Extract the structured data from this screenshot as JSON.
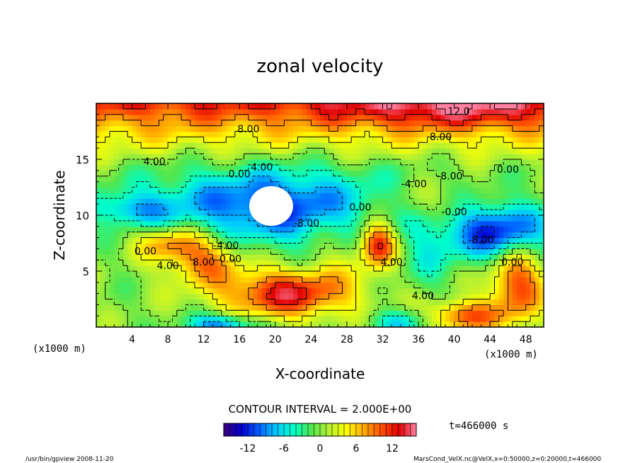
{
  "chart_data": {
    "type": "heatmap",
    "title": "zonal velocity",
    "xlabel": "X-coordinate",
    "ylabel": "Z-coordinate",
    "x_unit_label": "(x1000 m)",
    "z_unit_label": "(x1000 m)",
    "xlim": [
      0,
      50
    ],
    "ylim": [
      0,
      20
    ],
    "x_ticks": [
      4,
      8,
      12,
      16,
      20,
      24,
      28,
      32,
      36,
      40,
      44,
      48
    ],
    "y_ticks": [
      5,
      10,
      15
    ],
    "contour_interval_text": "CONTOUR INTERVAL = 2.000E+00",
    "time_text": "t=466000 s",
    "colorbar": {
      "range": [
        -16,
        16
      ],
      "ticks": [
        -12,
        -6,
        0,
        6,
        12
      ]
    },
    "contour_labels": [
      {
        "text": "12.0",
        "x": 40.5,
        "z": 19.0
      },
      {
        "text": "8.00",
        "x": 17.0,
        "z": 17.4
      },
      {
        "text": "8.00",
        "x": 38.5,
        "z": 16.7
      },
      {
        "text": "4.00",
        "x": 6.5,
        "z": 14.5
      },
      {
        "text": "4.00",
        "x": 18.5,
        "z": 14.0
      },
      {
        "text": "0.00",
        "x": 16.0,
        "z": 13.4
      },
      {
        "text": "-8.00",
        "x": 23.5,
        "z": 9.0
      },
      {
        "text": "-4.00",
        "x": 14.5,
        "z": 7.0
      },
      {
        "text": "0.00",
        "x": 29.5,
        "z": 10.4
      },
      {
        "text": "-4.00",
        "x": 35.5,
        "z": 12.5
      },
      {
        "text": "-8.00",
        "x": 39.5,
        "z": 13.2
      },
      {
        "text": "0.00",
        "x": 46.0,
        "z": 13.8
      },
      {
        "text": "-8.00",
        "x": 43.0,
        "z": 7.5
      },
      {
        "text": "-0.00",
        "x": 40.0,
        "z": 10.0
      },
      {
        "text": "0.00",
        "x": 46.5,
        "z": 5.5
      },
      {
        "text": "0.00",
        "x": 5.5,
        "z": 6.5
      },
      {
        "text": "4.00",
        "x": 8.0,
        "z": 5.2
      },
      {
        "text": "8.00",
        "x": 12.0,
        "z": 5.5
      },
      {
        "text": "0.00",
        "x": 15.0,
        "z": 5.8
      },
      {
        "text": "4.00",
        "x": 33.0,
        "z": 5.5
      },
      {
        "text": "4.00",
        "x": 36.5,
        "z": 2.5
      }
    ]
  },
  "footer": {
    "left": "/usr/bin/gpview  2008-11-20",
    "right": "MarsCond_VelX.nc@VelX,x=0:50000,z=0:20000,t=466000"
  },
  "colors": {
    "scale": [
      "#3a0078",
      "#0000d0",
      "#0060ff",
      "#00c8ff",
      "#00ffc8",
      "#50e650",
      "#b4f032",
      "#ffff00",
      "#ffaa00",
      "#ff5000",
      "#e00000",
      "#ff80a0"
    ],
    "obstacle": "#ffffff",
    "background": "#ffffff"
  }
}
